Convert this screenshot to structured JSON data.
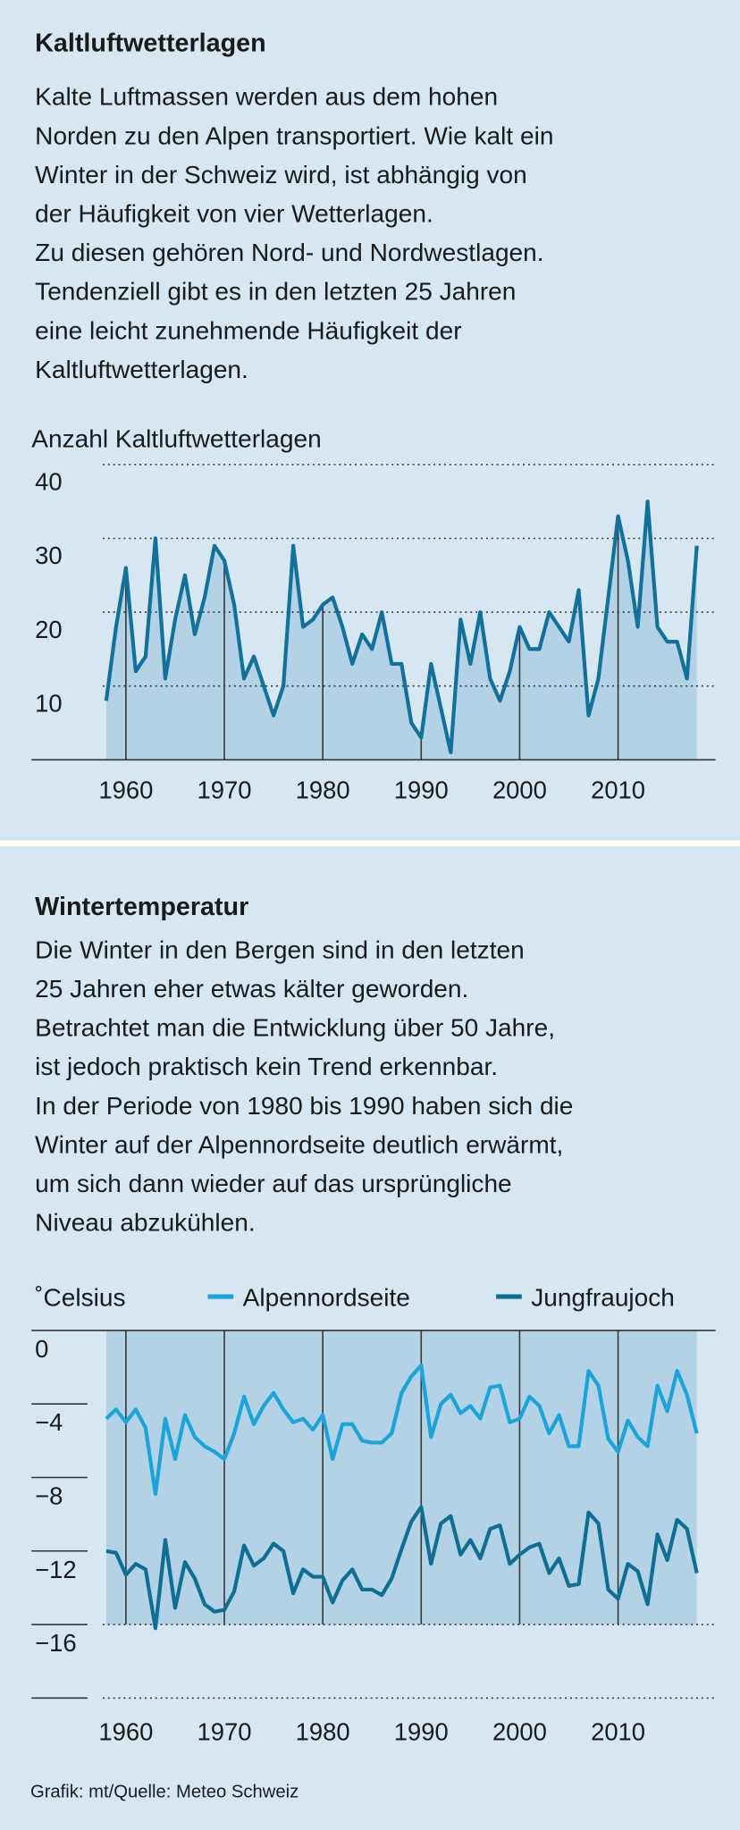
{
  "chart_data": [
    {
      "type": "area",
      "title": "Kaltluftwetterlagen",
      "description": [
        "Kalte Luftmassen werden aus dem hohen",
        "Norden zu den Alpen transportiert. Wie kalt ein",
        "Winter in der Schweiz wird, ist abhängig von",
        "der Häufigkeit von vier Wetterlagen.",
        "Zu diesen gehören Nord- und Nordwestlagen.",
        "Tendenziell gibt es in den letzten 25 Jahren",
        "eine leicht zunehmende Häufigkeit der",
        "Kaltluftwetterlagen."
      ],
      "y_label": "Anzahl Kaltluftwetterlagen",
      "color": "#11719a",
      "x": [
        1958,
        1959,
        1960,
        1961,
        1962,
        1963,
        1964,
        1965,
        1966,
        1967,
        1968,
        1969,
        1970,
        1971,
        1972,
        1973,
        1974,
        1975,
        1976,
        1977,
        1978,
        1979,
        1980,
        1981,
        1982,
        1983,
        1984,
        1985,
        1986,
        1987,
        1988,
        1989,
        1990,
        1991,
        1992,
        1993,
        1994,
        1995,
        1996,
        1997,
        1998,
        1999,
        2000,
        2001,
        2002,
        2003,
        2004,
        2005,
        2006,
        2007,
        2008,
        2009,
        2010,
        2011,
        2012,
        2013,
        2014,
        2015,
        2016,
        2017,
        2018
      ],
      "values": [
        8,
        18,
        26,
        12,
        14,
        30,
        11,
        19,
        25,
        17,
        22,
        29,
        27,
        21,
        11,
        14,
        10,
        6,
        10,
        29,
        18,
        19,
        21,
        22,
        18,
        13,
        17,
        15,
        20,
        13,
        13,
        5,
        3,
        13,
        7,
        1,
        19,
        13,
        20,
        11,
        8,
        12,
        18,
        15,
        15,
        20,
        18,
        16,
        23,
        6,
        11,
        22,
        33,
        27,
        18,
        35,
        18,
        16,
        16,
        11,
        29
      ],
      "xlim": [
        1958,
        2018
      ],
      "xticks": [
        1960,
        1970,
        1980,
        1990,
        2000,
        2010
      ],
      "ylim": [
        0,
        40
      ],
      "yticks": [
        10,
        20,
        30,
        40
      ],
      "grid": true
    },
    {
      "type": "line",
      "title": "Wintertemperatur",
      "description": [
        "Die Winter in den Bergen sind in den letzten",
        "25 Jahren eher etwas kälter geworden.",
        "Betrachtet man die Entwicklung über 50 Jahre,",
        "ist jedoch praktisch kein Trend erkennbar.",
        "In der Periode von 1980 bis 1990 haben sich die",
        "Winter auf der Alpennordseite deutlich erwärmt,",
        "um sich dann wieder auf das ursprüngliche",
        "Niveau abzukühlen."
      ],
      "y_label": "˚Celsius",
      "x": [
        1958,
        1959,
        1960,
        1961,
        1962,
        1963,
        1964,
        1965,
        1966,
        1967,
        1968,
        1969,
        1970,
        1971,
        1972,
        1973,
        1974,
        1975,
        1976,
        1977,
        1978,
        1979,
        1980,
        1981,
        1982,
        1983,
        1984,
        1985,
        1986,
        1987,
        1988,
        1989,
        1990,
        1991,
        1992,
        1993,
        1994,
        1995,
        1996,
        1997,
        1998,
        1999,
        2000,
        2001,
        2002,
        2003,
        2004,
        2005,
        2006,
        2007,
        2008,
        2009,
        2010,
        2011,
        2012,
        2013,
        2014,
        2015,
        2016,
        2017,
        2018
      ],
      "series": [
        {
          "name": "Alpennordseite",
          "color": "#1ba4da",
          "values": [
            -4.8,
            -4.3,
            -5.0,
            -4.3,
            -5.3,
            -8.9,
            -4.8,
            -7.0,
            -4.6,
            -5.8,
            -6.3,
            -6.6,
            -7.0,
            -5.6,
            -3.6,
            -5.1,
            -4.1,
            -3.4,
            -4.3,
            -5.0,
            -4.8,
            -5.4,
            -4.6,
            -7.0,
            -5.1,
            -5.1,
            -6.0,
            -6.1,
            -6.1,
            -5.6,
            -3.4,
            -2.5,
            -1.9,
            -5.8,
            -4.0,
            -3.5,
            -4.5,
            -4.1,
            -4.8,
            -3.1,
            -3.0,
            -5.0,
            -4.8,
            -3.6,
            -4.1,
            -5.6,
            -4.6,
            -6.3,
            -6.3,
            -2.2,
            -3.0,
            -5.9,
            -6.6,
            -4.9,
            -5.8,
            -6.3,
            -3.0,
            -4.4,
            -2.2,
            -3.5,
            -5.6
          ]
        },
        {
          "name": "Jungfraujoch",
          "color": "#0f6e94",
          "values": [
            -12.0,
            -12.1,
            -13.3,
            -12.7,
            -13.0,
            -16.2,
            -11.4,
            -15.1,
            -12.6,
            -13.5,
            -14.9,
            -15.3,
            -15.2,
            -14.2,
            -11.7,
            -12.8,
            -12.4,
            -11.6,
            -12.0,
            -14.3,
            -13.0,
            -13.4,
            -13.4,
            -14.8,
            -13.6,
            -13.0,
            -14.1,
            -14.1,
            -14.4,
            -13.5,
            -11.9,
            -10.4,
            -9.6,
            -12.7,
            -10.5,
            -10.1,
            -12.2,
            -11.4,
            -12.4,
            -10.8,
            -10.6,
            -12.7,
            -12.2,
            -11.8,
            -11.6,
            -13.2,
            -12.4,
            -13.9,
            -13.8,
            -9.9,
            -10.5,
            -14.1,
            -14.6,
            -12.7,
            -13.1,
            -14.9,
            -11.1,
            -12.5,
            -10.3,
            -10.8,
            -13.2
          ]
        }
      ],
      "xlim": [
        1958,
        2018
      ],
      "xticks": [
        1960,
        1970,
        1980,
        1990,
        2000,
        2010
      ],
      "ylim": [
        -20,
        0
      ],
      "yticks": [
        0,
        {
          "value": -4,
          "label": "−4"
        },
        {
          "value": -8,
          "label": "−8"
        },
        {
          "value": -12,
          "label": "−12"
        },
        {
          "value": -16,
          "label": "−16"
        }
      ],
      "legend": "top"
    }
  ],
  "footer": "Grafik: mt/Quelle: Meteo Schweiz"
}
